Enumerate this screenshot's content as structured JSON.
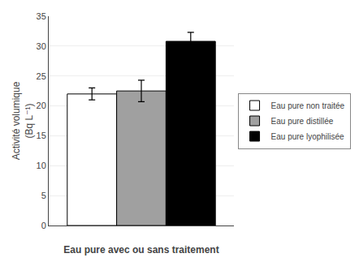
{
  "chart_data": {
    "type": "bar",
    "categories": [
      null
    ],
    "series": [
      {
        "name": "Eau pure non traitée",
        "color": "#ffffff",
        "values": [
          22.0
        ],
        "errors": [
          1.0
        ]
      },
      {
        "name": "Eau pure distillée",
        "color": "#a0a0a0",
        "values": [
          22.5
        ],
        "errors": [
          1.8
        ]
      },
      {
        "name": "Eau pure lyophilisée",
        "color": "#000000",
        "values": [
          30.8
        ],
        "errors": [
          1.5
        ]
      }
    ],
    "ylabel": "Activité volumique\n(Bq L⁻¹)",
    "xlabel": "Eau pure avec ou sans traitement",
    "ylim": [
      0,
      35
    ],
    "yticks": [
      0,
      5,
      10,
      15,
      20,
      25,
      30,
      35
    ],
    "grid": true,
    "legend": "right",
    "tick_labels": "y"
  }
}
